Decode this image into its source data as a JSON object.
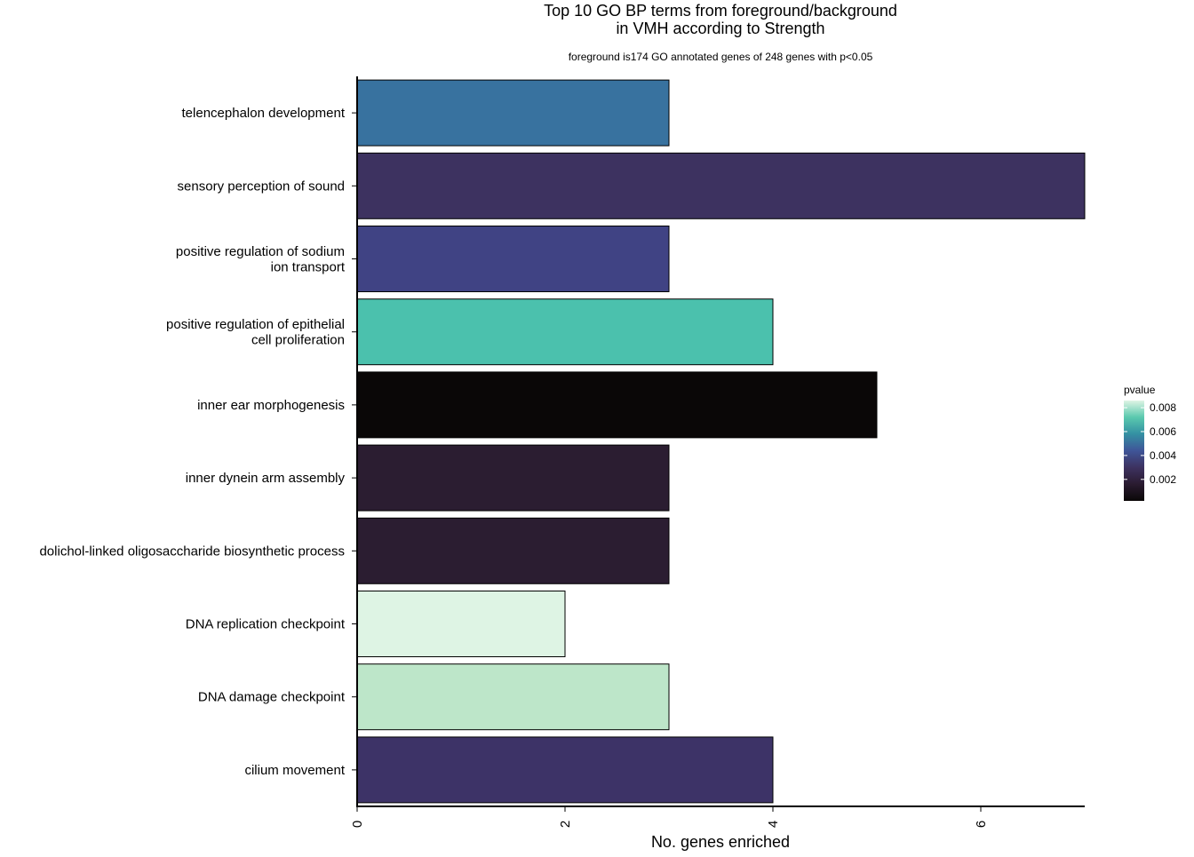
{
  "chart_data": {
    "type": "bar",
    "orientation": "horizontal",
    "title_line1": "Top 10 GO BP terms from foreground/background",
    "title_line2": "in VMH according to Strength",
    "subtitle": "foreground is174 GO annotated genes of 248 genes with p<0.05",
    "xlabel": "No. genes enriched",
    "ylabel": "",
    "xlim": [
      0,
      7
    ],
    "x_ticks": [
      0,
      2,
      4,
      6
    ],
    "x_tick_labels": [
      "0",
      "2",
      "4",
      "6"
    ],
    "grid": false,
    "categories": [
      [
        "telencephalon development"
      ],
      [
        "sensory perception of sound"
      ],
      [
        "positive regulation of sodium",
        "ion transport"
      ],
      [
        "positive regulation of epithelial",
        "cell proliferation"
      ],
      [
        "inner ear morphogenesis"
      ],
      [
        "inner dynein arm assembly"
      ],
      [
        "dolichol-linked oligosaccharide biosynthetic process"
      ],
      [
        "DNA replication checkpoint"
      ],
      [
        "DNA damage checkpoint"
      ],
      [
        "cilium movement"
      ]
    ],
    "values": [
      3,
      7,
      3,
      4,
      5,
      3,
      3,
      2,
      3,
      4
    ],
    "bar_colors": [
      "#38729f",
      "#3d3260",
      "#404384",
      "#4bc1ad",
      "#0a0707",
      "#2b1d31",
      "#2b1d31",
      "#def4e4",
      "#bde6c9",
      "#3d3367"
    ],
    "legend": {
      "title": "pvalue",
      "position": "right",
      "tick_labels": [
        "0.008",
        "0.006",
        "0.004",
        "0.002"
      ],
      "tick_values": [
        0.008,
        0.006,
        0.004,
        0.002
      ],
      "range": [
        0.0002,
        0.0086
      ],
      "colors": [
        "#def4e4",
        "#5ac9ae",
        "#3490a3",
        "#3f5598",
        "#3d3260",
        "#2a1b30",
        "#0a0707"
      ]
    }
  }
}
